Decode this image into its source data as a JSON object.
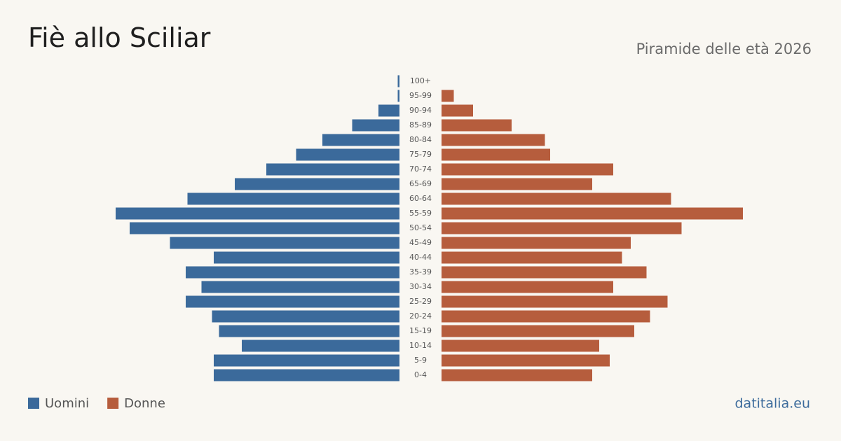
{
  "chart_data": {
    "type": "pyramid",
    "title": "Fiè allo Sciliar",
    "subtitle": "Piramide delle età 2026",
    "source": "datitalia.eu",
    "categories": [
      "100+",
      "95-99",
      "90-94",
      "85-89",
      "80-84",
      "75-79",
      "70-74",
      "65-69",
      "60-64",
      "55-59",
      "50-54",
      "45-49",
      "40-44",
      "35-39",
      "30-34",
      "25-29",
      "20-24",
      "15-19",
      "10-14",
      "5-9",
      "0-4"
    ],
    "series": [
      {
        "name": "Uomini",
        "color": "#3b6a9b",
        "values": [
          1,
          1,
          12,
          27,
          44,
          59,
          76,
          94,
          121,
          162,
          154,
          131,
          106,
          122,
          113,
          122,
          107,
          103,
          90,
          106,
          106
        ]
      },
      {
        "name": "Donne",
        "color": "#b65d3d",
        "values": [
          0,
          7,
          18,
          40,
          59,
          62,
          98,
          86,
          131,
          172,
          137,
          108,
          103,
          117,
          98,
          129,
          119,
          110,
          90,
          96,
          86
        ]
      }
    ]
  }
}
